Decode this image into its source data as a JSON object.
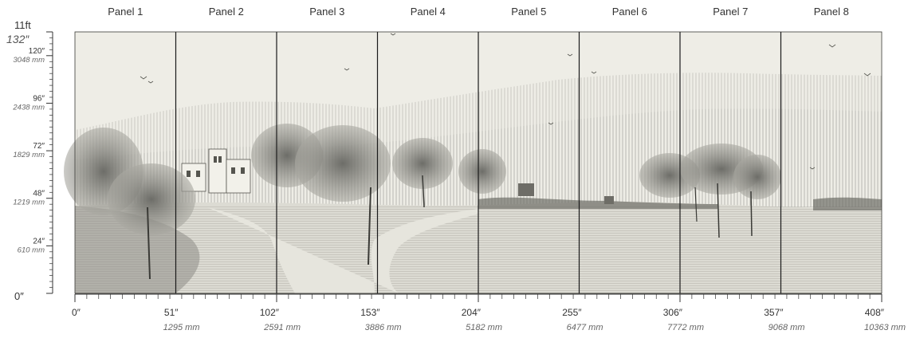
{
  "panels": [
    "Panel 1",
    "Panel 2",
    "Panel 3",
    "Panel 4",
    "Panel 5",
    "Panel 6",
    "Panel 7",
    "Panel 8"
  ],
  "horizontal_ruler": {
    "max_inches": 408,
    "marks": [
      {
        "value": 0,
        "inch_label": "0″",
        "mm_label": ""
      },
      {
        "value": 51,
        "inch_label": "51″",
        "mm_label": "1295 mm"
      },
      {
        "value": 102,
        "inch_label": "102″",
        "mm_label": "2591 mm"
      },
      {
        "value": 153,
        "inch_label": "153″",
        "mm_label": "3886 mm"
      },
      {
        "value": 204,
        "inch_label": "204″",
        "mm_label": "5182 mm"
      },
      {
        "value": 255,
        "inch_label": "255″",
        "mm_label": "6477 mm"
      },
      {
        "value": 306,
        "inch_label": "306″",
        "mm_label": "7772 mm"
      },
      {
        "value": 357,
        "inch_label": "357″",
        "mm_label": "9068 mm"
      },
      {
        "value": 408,
        "inch_label": "408″",
        "mm_label": "10363 mm"
      }
    ]
  },
  "vertical_ruler": {
    "max_inches": 132,
    "top_label_ft": "11ft",
    "top_label_in": "132″",
    "bottom_label": "0″",
    "marks": [
      {
        "value": 120,
        "inch_label": "120″",
        "mm_label": "3048 mm"
      },
      {
        "value": 96,
        "inch_label": "96″",
        "mm_label": "2438 mm"
      },
      {
        "value": 72,
        "inch_label": "72″",
        "mm_label": "1829 mm"
      },
      {
        "value": 48,
        "inch_label": "48″",
        "mm_label": "1219 mm"
      },
      {
        "value": 24,
        "inch_label": "24″",
        "mm_label": "610 mm"
      }
    ]
  },
  "colors": {
    "sky": "#eeede6",
    "ground": "#d9d8d0",
    "ink": "#3a3a36",
    "divider": "#1a1a1a"
  }
}
